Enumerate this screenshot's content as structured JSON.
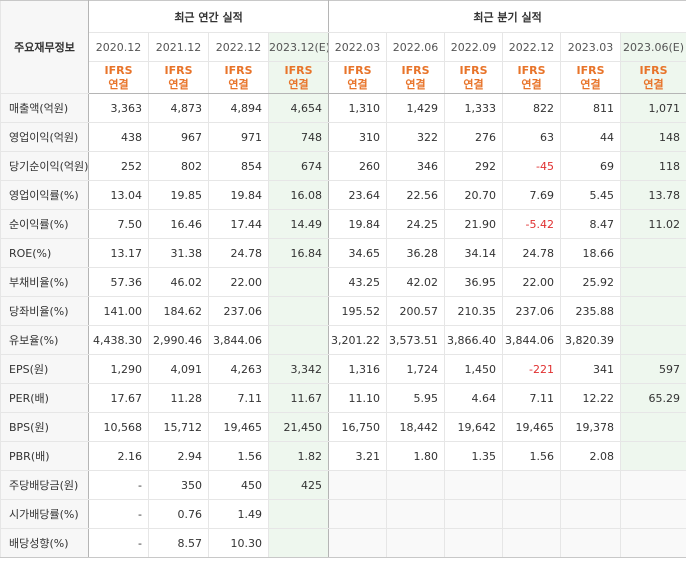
{
  "header": {
    "label_col": "주요재무정보",
    "annual_group": "최근 연간 실적",
    "quarter_group": "최근 분기 실적",
    "periods": [
      "2020.12",
      "2021.12",
      "2022.12",
      "2023.12(E)",
      "2022.03",
      "2022.06",
      "2022.09",
      "2022.12",
      "2023.03",
      "2023.06(E)"
    ],
    "ifrs_top": "IFRS",
    "ifrs_bottom": "연결"
  },
  "rows": [
    {
      "label": "매출액(억원)",
      "values": [
        "3,363",
        "4,873",
        "4,894",
        "4,654",
        "1,310",
        "1,429",
        "1,333",
        "822",
        "811",
        "1,071"
      ]
    },
    {
      "label": "영업이익(억원)",
      "values": [
        "438",
        "967",
        "971",
        "748",
        "310",
        "322",
        "276",
        "63",
        "44",
        "148"
      ]
    },
    {
      "label": "당기순이익(억원)",
      "values": [
        "252",
        "802",
        "854",
        "674",
        "260",
        "346",
        "292",
        "-45",
        "69",
        "118"
      ]
    },
    {
      "label": "영업이익률(%)",
      "values": [
        "13.04",
        "19.85",
        "19.84",
        "16.08",
        "23.64",
        "22.56",
        "20.70",
        "7.69",
        "5.45",
        "13.78"
      ]
    },
    {
      "label": "순이익률(%)",
      "values": [
        "7.50",
        "16.46",
        "17.44",
        "14.49",
        "19.84",
        "24.25",
        "21.90",
        "-5.42",
        "8.47",
        "11.02"
      ]
    },
    {
      "label": "ROE(%)",
      "values": [
        "13.17",
        "31.38",
        "24.78",
        "16.84",
        "34.65",
        "36.28",
        "34.14",
        "24.78",
        "18.66",
        ""
      ]
    },
    {
      "label": "부채비율(%)",
      "values": [
        "57.36",
        "46.02",
        "22.00",
        "",
        "43.25",
        "42.02",
        "36.95",
        "22.00",
        "25.92",
        ""
      ]
    },
    {
      "label": "당좌비율(%)",
      "values": [
        "141.00",
        "184.62",
        "237.06",
        "",
        "195.52",
        "200.57",
        "210.35",
        "237.06",
        "235.88",
        ""
      ]
    },
    {
      "label": "유보율(%)",
      "values": [
        "4,438.30",
        "2,990.46",
        "3,844.06",
        "",
        "3,201.22",
        "3,573.51",
        "3,866.40",
        "3,844.06",
        "3,820.39",
        ""
      ]
    },
    {
      "label": "EPS(원)",
      "values": [
        "1,290",
        "4,091",
        "4,263",
        "3,342",
        "1,316",
        "1,724",
        "1,450",
        "-221",
        "341",
        "597"
      ]
    },
    {
      "label": "PER(배)",
      "values": [
        "17.67",
        "11.28",
        "7.11",
        "11.67",
        "11.10",
        "5.95",
        "4.64",
        "7.11",
        "12.22",
        "65.29"
      ]
    },
    {
      "label": "BPS(원)",
      "values": [
        "10,568",
        "15,712",
        "19,465",
        "21,450",
        "16,750",
        "18,442",
        "19,642",
        "19,465",
        "19,378",
        ""
      ]
    },
    {
      "label": "PBR(배)",
      "values": [
        "2.16",
        "2.94",
        "1.56",
        "1.82",
        "3.21",
        "1.80",
        "1.35",
        "1.56",
        "2.08",
        ""
      ]
    },
    {
      "label": "주당배당금(원)",
      "values": [
        "-",
        "350",
        "450",
        "425",
        "",
        "",
        "",
        "",
        "",
        ""
      ]
    },
    {
      "label": "시가배당률(%)",
      "values": [
        "-",
        "0.76",
        "1.49",
        "",
        "",
        "",
        "",
        "",
        "",
        ""
      ]
    },
    {
      "label": "배당성향(%)",
      "values": [
        "-",
        "8.57",
        "10.30",
        "",
        "",
        "",
        "",
        "",
        "",
        ""
      ]
    }
  ]
}
